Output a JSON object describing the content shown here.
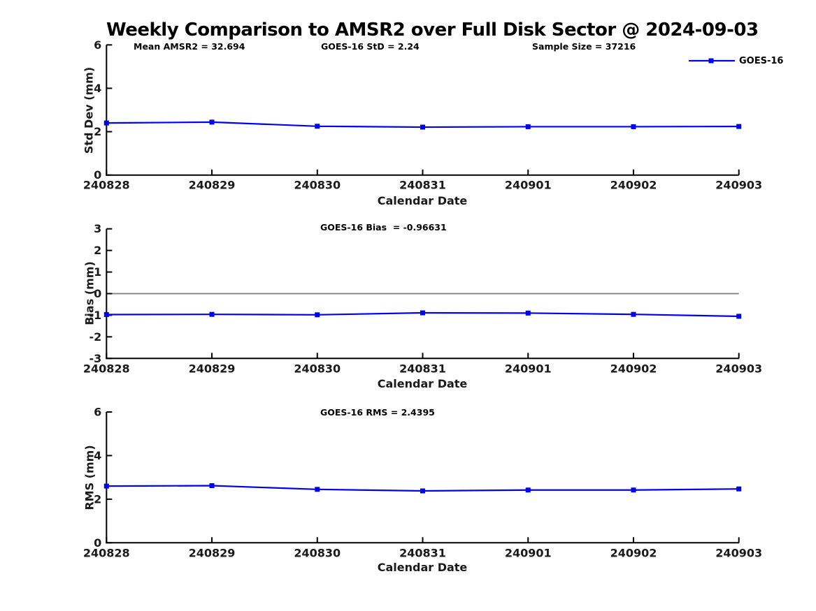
{
  "figure": {
    "title": "Weekly Comparison to AMSR2 over Full Disk Sector @ 2024-09-03"
  },
  "legend": {
    "label": "GOES-16",
    "color": "#0000EE",
    "marker": "square",
    "position": "top-right"
  },
  "chart_data": [
    {
      "type": "line",
      "name": "stddev",
      "categories": [
        "240828",
        "240829",
        "240830",
        "240831",
        "240901",
        "240902",
        "240903"
      ],
      "series": [
        {
          "name": "GOES-16",
          "color": "#0000EE",
          "marker": "square",
          "values": [
            2.4,
            2.44,
            2.25,
            2.21,
            2.23,
            2.23,
            2.24
          ]
        }
      ],
      "annotations": [
        "Mean AMSR2 = 32.694",
        "GOES-16 StD = 2.24",
        "Sample Size = 37216"
      ],
      "xlabel": "Calendar Date",
      "ylabel": "Std Dev (mm)",
      "ylim": [
        0,
        6
      ],
      "yticks": [
        0,
        2,
        4,
        6
      ],
      "grid": false
    },
    {
      "type": "line",
      "name": "bias",
      "categories": [
        "240828",
        "240829",
        "240830",
        "240831",
        "240901",
        "240902",
        "240903"
      ],
      "series": [
        {
          "name": "GOES-16",
          "color": "#0000EE",
          "marker": "square",
          "values": [
            -0.97,
            -0.96,
            -0.98,
            -0.89,
            -0.9,
            -0.96,
            -1.05
          ]
        }
      ],
      "annotations": [
        "GOES-16 Bias  = -0.96631"
      ],
      "xlabel": "Calendar Date",
      "ylabel": "Bias (mm)",
      "ylim": [
        -3,
        3
      ],
      "yticks": [
        3,
        2,
        1,
        0,
        -1,
        -2,
        -3
      ],
      "zero_line": true,
      "zero_line_color": "#888888",
      "grid": false
    },
    {
      "type": "line",
      "name": "rms",
      "categories": [
        "240828",
        "240829",
        "240830",
        "240831",
        "240901",
        "240902",
        "240903"
      ],
      "series": [
        {
          "name": "GOES-16",
          "color": "#0000EE",
          "marker": "square",
          "values": [
            2.6,
            2.62,
            2.45,
            2.38,
            2.42,
            2.42,
            2.47
          ]
        }
      ],
      "annotations": [
        "GOES-16 RMS = 2.4395"
      ],
      "xlabel": "Calendar Date",
      "ylabel": "RMS (mm)",
      "ylim": [
        0,
        6
      ],
      "yticks": [
        0,
        2,
        4,
        6
      ],
      "grid": false
    }
  ]
}
